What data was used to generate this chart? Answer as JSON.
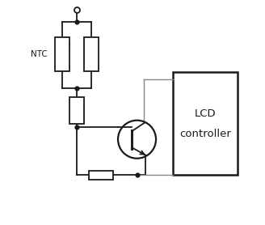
{
  "background_color": "#ffffff",
  "line_color": "#888888",
  "dark_color": "#1a1a1a",
  "fig_width": 3.28,
  "fig_height": 2.78,
  "dpi": 100,
  "ntc_label": "NTC",
  "lcd_label_line1": "LCD",
  "lcd_label_line2": "controller",
  "xlim": [
    0,
    10
  ],
  "ylim": [
    0,
    10
  ],
  "lw": 1.3,
  "lw_thin": 1.0,
  "dot_size": 4.5,
  "open_circle_size": 5
}
